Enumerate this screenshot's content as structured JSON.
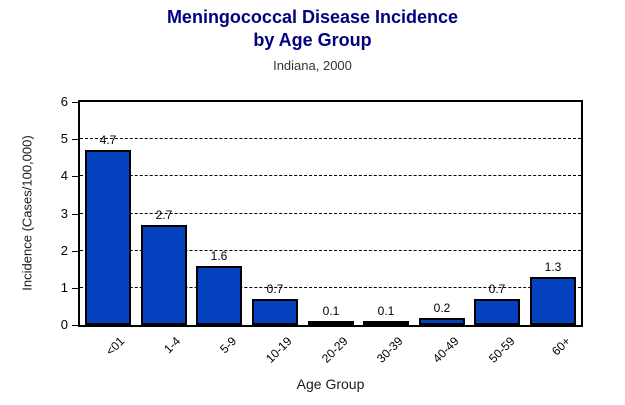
{
  "title": {
    "line1": "Meningococcal Disease Incidence",
    "line2": "by Age Group"
  },
  "subtitle": "Indiana, 2000",
  "chart_data": {
    "type": "bar",
    "title": "Meningococcal Disease Incidence by Age Group",
    "subtitle": "Indiana, 2000",
    "categories": [
      "<01",
      "1-4",
      "5-9",
      "10-19",
      "20-29",
      "30-39",
      "40-49",
      "50-59",
      "60+"
    ],
    "values": [
      4.7,
      2.7,
      1.6,
      0.7,
      0.1,
      0.1,
      0.2,
      0.7,
      1.3
    ],
    "value_labels": [
      "4.7",
      "2.7",
      "1.6",
      "0.7",
      "0.1",
      "0.1",
      "0.2",
      "0.7",
      "1.3"
    ],
    "xlabel": "Age Group",
    "ylabel": "Incidence (Cases/100,000)",
    "ylim": [
      0,
      6
    ],
    "yticks": [
      0,
      1,
      2,
      3,
      4,
      5,
      6
    ],
    "grid": "horizontal dashed lines at 1 through 5",
    "legend": "none",
    "bar_color": "#0441bf",
    "bar_border_color": "#000000",
    "title_color": "#000080",
    "subtitle_color": "#333333"
  }
}
